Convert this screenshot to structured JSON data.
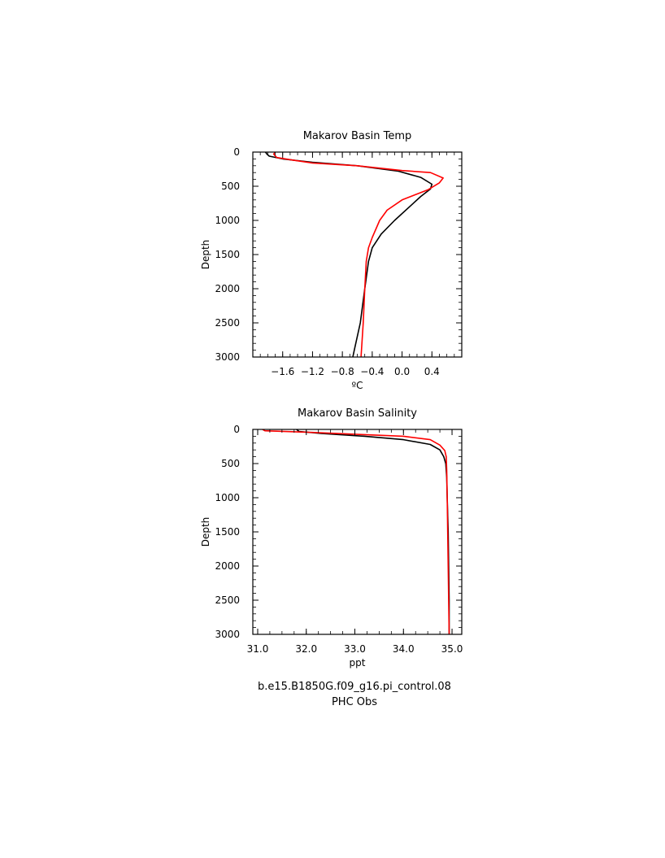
{
  "chart_data": [
    {
      "type": "line",
      "title": "Makarov Basin Temp",
      "xlabel": "ºC",
      "ylabel": "Depth",
      "xlim": [
        -2.0,
        0.8
      ],
      "ylim": [
        3000,
        0
      ],
      "y_inverted": true,
      "xticks": [
        -1.6,
        -1.2,
        -0.8,
        -0.4,
        0.0,
        0.4
      ],
      "xtick_labels": [
        "−1.6",
        "−1.2",
        "−0.8",
        "−0.4",
        "0.0",
        "0.4"
      ],
      "yticks": [
        0,
        500,
        1000,
        1500,
        2000,
        2500,
        3000
      ],
      "ytick_labels": [
        "0",
        "500",
        "1000",
        "1500",
        "2000",
        "2500",
        "3000"
      ],
      "grid": false,
      "series": [
        {
          "color": "#000000",
          "points": [
            [
              -1.83,
              0
            ],
            [
              -1.81,
              30
            ],
            [
              -1.78,
              60
            ],
            [
              -1.6,
              100
            ],
            [
              -1.2,
              150
            ],
            [
              -0.6,
              200
            ],
            [
              -0.05,
              280
            ],
            [
              0.25,
              370
            ],
            [
              0.4,
              470
            ],
            [
              0.38,
              540
            ],
            [
              0.25,
              650
            ],
            [
              0.1,
              800
            ],
            [
              -0.1,
              1000
            ],
            [
              -0.28,
              1200
            ],
            [
              -0.4,
              1400
            ],
            [
              -0.45,
              1600
            ],
            [
              -0.5,
              2000
            ],
            [
              -0.56,
              2500
            ],
            [
              -0.64,
              2900
            ],
            [
              -0.66,
              3000
            ]
          ]
        },
        {
          "color": "#ff0000",
          "points": [
            [
              -1.7,
              0
            ],
            [
              -1.72,
              30
            ],
            [
              -1.68,
              80
            ],
            [
              -1.45,
              120
            ],
            [
              -1.2,
              160
            ],
            [
              -0.6,
              200
            ],
            [
              0.0,
              270
            ],
            [
              0.38,
              300
            ],
            [
              0.55,
              380
            ],
            [
              0.5,
              450
            ],
            [
              0.35,
              550
            ],
            [
              0.0,
              700
            ],
            [
              -0.2,
              850
            ],
            [
              -0.3,
              1000
            ],
            [
              -0.4,
              1250
            ],
            [
              -0.45,
              1400
            ],
            [
              -0.48,
              1600
            ],
            [
              -0.5,
              2000
            ],
            [
              -0.52,
              2500
            ],
            [
              -0.55,
              3000
            ]
          ]
        }
      ]
    },
    {
      "type": "line",
      "title": "Makarov Basin Salinity",
      "xlabel": "ppt",
      "ylabel": "Depth",
      "xlim": [
        30.9,
        35.2
      ],
      "ylim": [
        3000,
        0
      ],
      "y_inverted": true,
      "xticks": [
        31.0,
        32.0,
        33.0,
        34.0,
        35.0
      ],
      "xtick_labels": [
        "31.0",
        "32.0",
        "33.0",
        "34.0",
        "35.0"
      ],
      "yticks": [
        0,
        500,
        1000,
        1500,
        2000,
        2500,
        3000
      ],
      "ytick_labels": [
        "0",
        "500",
        "1000",
        "1500",
        "2000",
        "2500",
        "3000"
      ],
      "grid": false,
      "series": [
        {
          "color": "#000000",
          "points": [
            [
              31.8,
              0
            ],
            [
              31.85,
              30
            ],
            [
              32.3,
              60
            ],
            [
              33.2,
              100
            ],
            [
              34.0,
              150
            ],
            [
              34.55,
              220
            ],
            [
              34.75,
              300
            ],
            [
              34.83,
              400
            ],
            [
              34.87,
              500
            ],
            [
              34.89,
              700
            ],
            [
              34.9,
              1000
            ],
            [
              34.92,
              1500
            ],
            [
              34.93,
              2000
            ],
            [
              34.94,
              2500
            ],
            [
              34.94,
              3000
            ]
          ]
        },
        {
          "color": "#ff0000",
          "points": [
            [
              31.1,
              0
            ],
            [
              31.15,
              20
            ],
            [
              32.0,
              40
            ],
            [
              33.0,
              70
            ],
            [
              34.0,
              100
            ],
            [
              34.55,
              150
            ],
            [
              34.75,
              230
            ],
            [
              34.85,
              310
            ],
            [
              34.88,
              400
            ],
            [
              34.89,
              600
            ],
            [
              34.9,
              1000
            ],
            [
              34.91,
              1500
            ],
            [
              34.92,
              2000
            ],
            [
              34.93,
              2500
            ],
            [
              34.94,
              3000
            ]
          ]
        }
      ]
    }
  ],
  "legend": {
    "run_label": "b.e15.B1850G.f09_g16.pi_control.08",
    "obs_label": "PHC Obs",
    "run_color": "#000000",
    "obs_color": "#ff0000"
  }
}
